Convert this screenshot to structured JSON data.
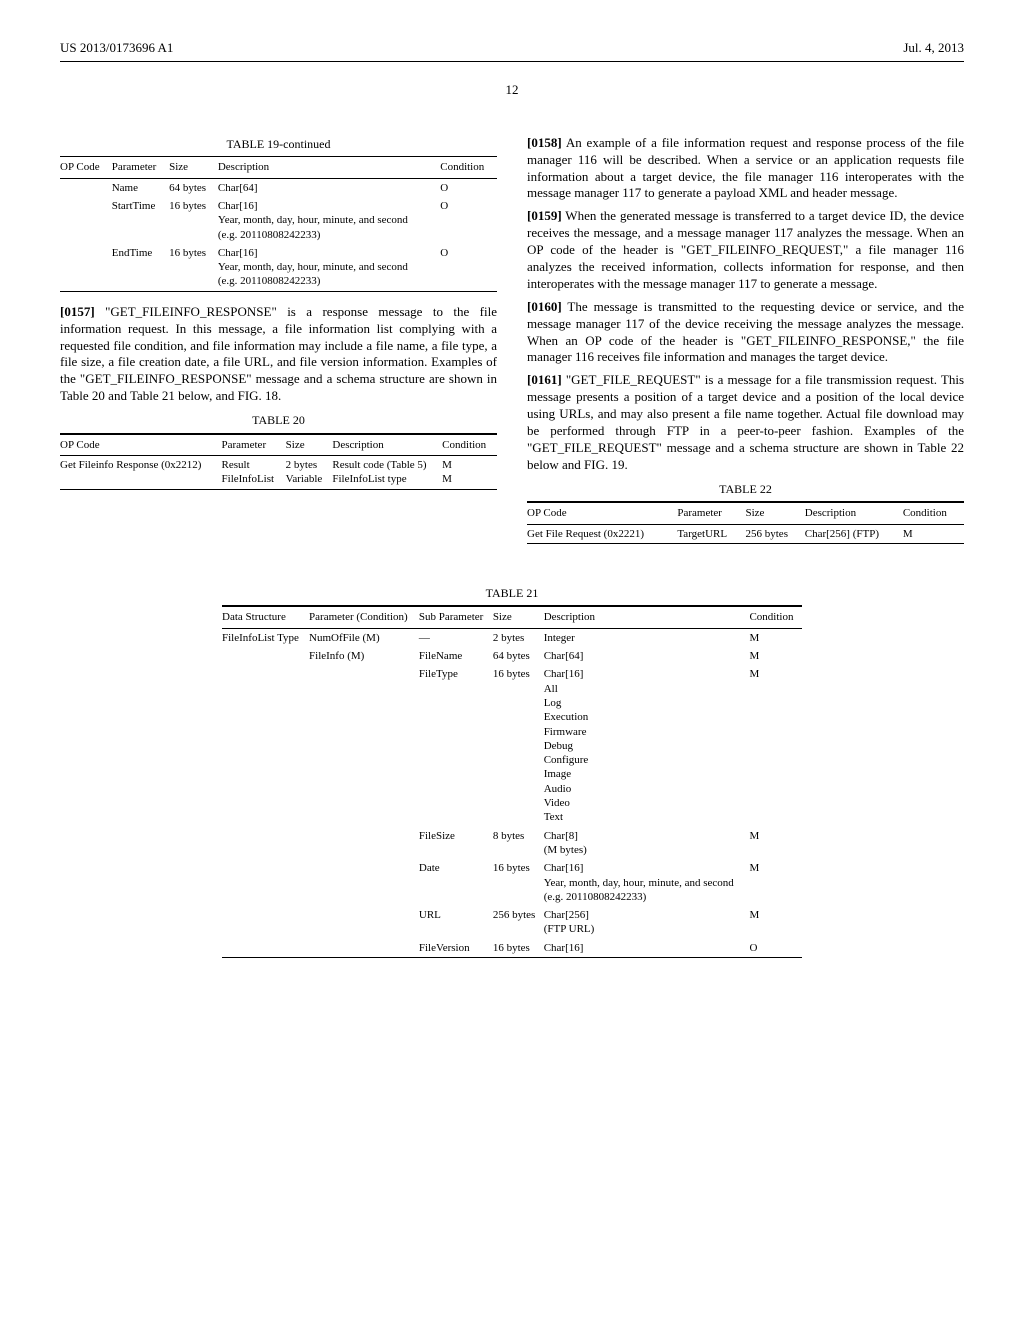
{
  "header": {
    "pubNumber": "US 2013/0173696 A1",
    "date": "Jul. 4, 2013"
  },
  "pageNumber": "12",
  "table19": {
    "title": "TABLE 19-continued",
    "headers": [
      "OP Code",
      "Parameter",
      "Size",
      "Description",
      "Condition"
    ],
    "rows": [
      {
        "op": "",
        "param": "Name",
        "size": "64 bytes",
        "desc": "Char[64]",
        "cond": "O"
      },
      {
        "op": "",
        "param": "StartTime",
        "size": "16 bytes",
        "desc": "Char[16]\nYear, month, day, hour, minute, and second\n(e.g. 20110808242233)",
        "cond": "O"
      },
      {
        "op": "",
        "param": "EndTime",
        "size": "16 bytes",
        "desc": "Char[16]\nYear, month, day, hour, minute, and second\n(e.g. 20110808242233)",
        "cond": "O"
      }
    ]
  },
  "para0157": {
    "num": "[0157]",
    "text": "\"GET_FILEINFO_RESPONSE\" is a response message to the file information request. In this message, a file information list complying with a requested file condition, and file information may include a file name, a file type, a file size, a file creation date, a file URL, and file version information. Examples of the \"GET_FILEINFO_RESPONSE\" message and a schema structure are shown in Table 20 and Table 21 below, and FIG. 18."
  },
  "table20": {
    "title": "TABLE 20",
    "headers": [
      "OP Code",
      "Parameter",
      "Size",
      "Description",
      "Condition"
    ],
    "rows": [
      {
        "op": "Get Fileinfo Response (0x2212)",
        "param": "Result\nFileInfoList",
        "size": "2 bytes\nVariable",
        "desc": "Result code (Table 5)\nFileInfoList type",
        "cond": "M\nM"
      }
    ]
  },
  "para0158": {
    "num": "[0158]",
    "text": "An example of a file information request and response process of the file manager 116 will be described. When a service or an application requests file information about a target device, the file manager 116 interoperates with the message manager 117 to generate a payload XML and header message."
  },
  "para0159": {
    "num": "[0159]",
    "text": "When the generated message is transferred to a target device ID, the device receives the message, and a message manager 117 analyzes the message. When an OP code of the header is \"GET_FILEINFO_REQUEST,\" a file manager 116 analyzes the received information, collects information for response, and then interoperates with the message manager 117 to generate a message."
  },
  "para0160": {
    "num": "[0160]",
    "text": "The message is transmitted to the requesting device or service, and the message manager 117 of the device receiving the message analyzes the message. When an OP code of the header is \"GET_FILEINFO_RESPONSE,\" the file manager 116 receives file information and manages the target device."
  },
  "para0161": {
    "num": "[0161]",
    "text": "\"GET_FILE_REQUEST\" is a message for a file transmission request. This message presents a position of a target device and a position of the local device using URLs, and may also present a file name together. Actual file download may be performed through FTP in a peer-to-peer fashion. Examples of the \"GET_FILE_REQUEST\" message and a schema structure are shown in Table 22 below and FIG. 19."
  },
  "table22": {
    "title": "TABLE 22",
    "headers": [
      "OP Code",
      "Parameter",
      "Size",
      "Description",
      "Condition"
    ],
    "rows": [
      {
        "op": "Get File Request (0x2221)",
        "param": "TargetURL",
        "size": "256 bytes",
        "desc": "Char[256] (FTP)",
        "cond": "M"
      }
    ]
  },
  "table21": {
    "title": "TABLE 21",
    "headers": [
      "Data Structure",
      "Parameter (Condition)",
      "Sub Parameter",
      "Size",
      "Description",
      "Condition"
    ],
    "rows": [
      {
        "ds": "FileInfoList Type",
        "pc": "NumOfFile (M)",
        "sp": "—",
        "size": "2 bytes",
        "desc": "Integer",
        "cond": "M"
      },
      {
        "ds": "",
        "pc": "FileInfo (M)",
        "sp": "FileName",
        "size": "64 bytes",
        "desc": "Char[64]",
        "cond": "M"
      },
      {
        "ds": "",
        "pc": "",
        "sp": "FileType",
        "size": "16 bytes",
        "desc": "Char[16]\nAll\nLog\nExecution\nFirmware\nDebug\nConfigure\nImage\nAudio\nVideo\nText",
        "cond": "M"
      },
      {
        "ds": "",
        "pc": "",
        "sp": "FileSize",
        "size": "8 bytes",
        "desc": "Char[8]\n(M bytes)",
        "cond": "M"
      },
      {
        "ds": "",
        "pc": "",
        "sp": "Date",
        "size": "16 bytes",
        "desc": "Char[16]\nYear, month, day, hour, minute, and second\n(e.g. 20110808242233)",
        "cond": "M"
      },
      {
        "ds": "",
        "pc": "",
        "sp": "URL",
        "size": "256 bytes",
        "desc": "Char[256]\n(FTP URL)",
        "cond": "M"
      },
      {
        "ds": "",
        "pc": "",
        "sp": "FileVersion",
        "size": "16 bytes",
        "desc": "Char[16]",
        "cond": "O"
      }
    ]
  }
}
